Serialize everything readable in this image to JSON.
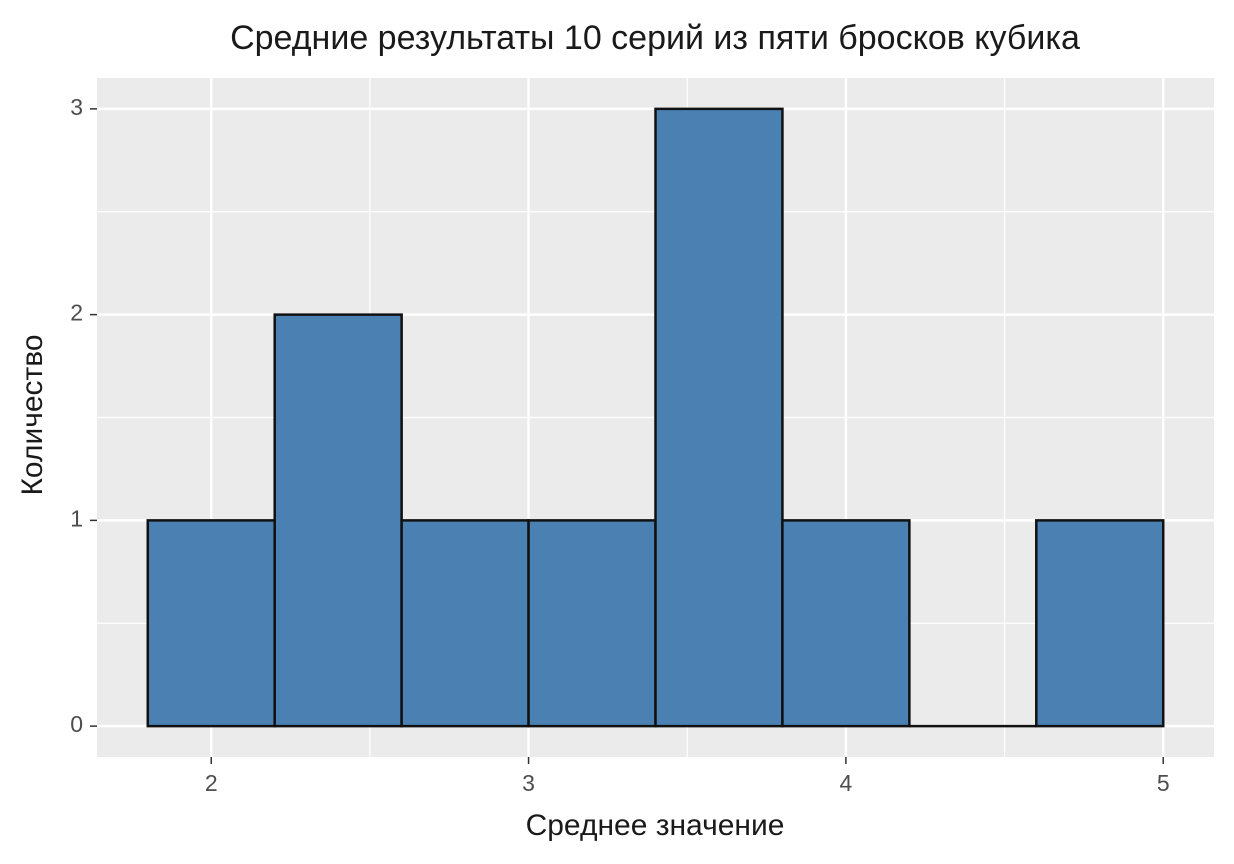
{
  "chart_data": {
    "type": "histogram",
    "title": "Средние результаты 10 серий из пяти бросков кубика",
    "x_label": "Среднее значение",
    "y_label": "Количество",
    "bins": [
      1.8,
      2.2,
      2.6,
      3.0,
      3.4,
      3.8,
      4.2,
      4.6,
      5.0
    ],
    "values": [
      1,
      2,
      1,
      1,
      3,
      1,
      0,
      1
    ],
    "color": "#4a80b2",
    "edgecolor": "#111111",
    "xlim": [
      1.64,
      5.16
    ],
    "ylim": [
      -0.15,
      3.15
    ],
    "xticks": [
      2,
      3,
      4,
      5
    ],
    "yticks": [
      0,
      1,
      2,
      3
    ],
    "grid": true,
    "minor_grid": true
  }
}
